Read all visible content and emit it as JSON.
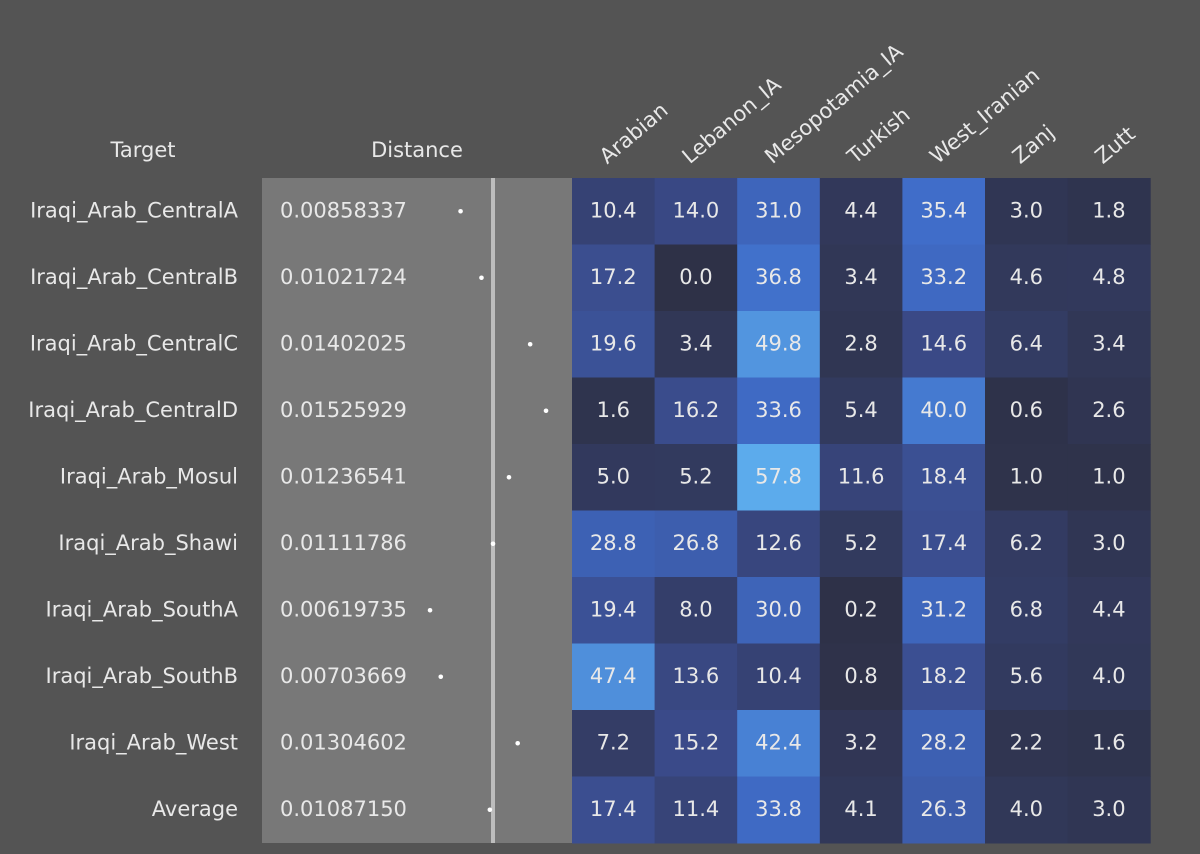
{
  "header": {
    "target": "Target",
    "distance": "Distance",
    "columns": [
      "Arabian",
      "Lebanon_IA",
      "Mesopotamia_IA",
      "Turkish",
      "West_Iranian",
      "Zanj",
      "Zutt"
    ]
  },
  "rows": [
    {
      "target": "Iraqi_Arab_CentralA",
      "distance": "0.00858337",
      "values": [
        "10.4",
        "14.0",
        "31.0",
        "4.4",
        "35.4",
        "3.0",
        "1.8"
      ]
    },
    {
      "target": "Iraqi_Arab_CentralB",
      "distance": "0.01021724",
      "values": [
        "17.2",
        "0.0",
        "36.8",
        "3.4",
        "33.2",
        "4.6",
        "4.8"
      ]
    },
    {
      "target": "Iraqi_Arab_CentralC",
      "distance": "0.01402025",
      "values": [
        "19.6",
        "3.4",
        "49.8",
        "2.8",
        "14.6",
        "6.4",
        "3.4"
      ]
    },
    {
      "target": "Iraqi_Arab_CentralD",
      "distance": "0.01525929",
      "values": [
        "1.6",
        "16.2",
        "33.6",
        "5.4",
        "40.0",
        "0.6",
        "2.6"
      ]
    },
    {
      "target": "Iraqi_Arab_Mosul",
      "distance": "0.01236541",
      "values": [
        "5.0",
        "5.2",
        "57.8",
        "11.6",
        "18.4",
        "1.0",
        "1.0"
      ]
    },
    {
      "target": "Iraqi_Arab_Shawi",
      "distance": "0.01111786",
      "values": [
        "28.8",
        "26.8",
        "12.6",
        "5.2",
        "17.4",
        "6.2",
        "3.0"
      ]
    },
    {
      "target": "Iraqi_Arab_SouthA",
      "distance": "0.00619735",
      "values": [
        "19.4",
        "8.0",
        "30.0",
        "0.2",
        "31.2",
        "6.8",
        "4.4"
      ]
    },
    {
      "target": "Iraqi_Arab_SouthB",
      "distance": "0.00703669",
      "values": [
        "47.4",
        "13.6",
        "10.4",
        "0.8",
        "18.2",
        "5.6",
        "4.0"
      ]
    },
    {
      "target": "Iraqi_Arab_West",
      "distance": "0.01304602",
      "values": [
        "7.2",
        "15.2",
        "42.4",
        "3.2",
        "28.2",
        "2.2",
        "1.6"
      ]
    },
    {
      "target": "Average",
      "distance": "0.01087150",
      "values": [
        "17.4",
        "11.4",
        "33.8",
        "4.1",
        "26.3",
        "4.0",
        "3.0"
      ]
    }
  ]
}
